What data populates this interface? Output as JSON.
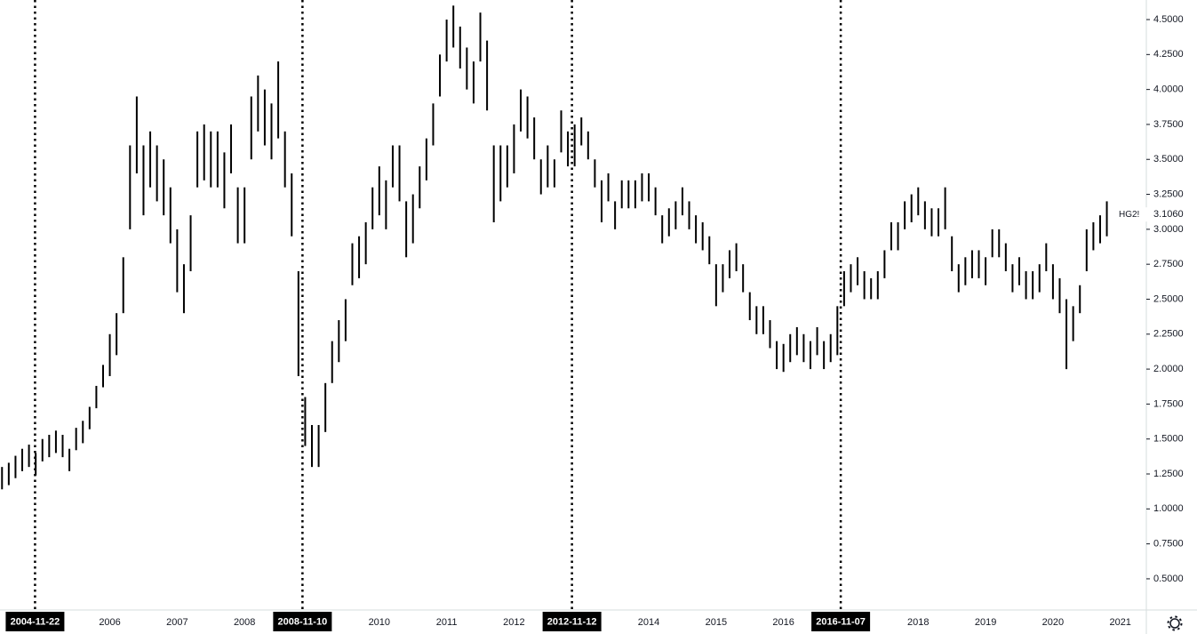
{
  "chart_data": {
    "type": "ohlc",
    "symbol": "HG2!",
    "last": {
      "value": 3.106,
      "label": "3.1060"
    },
    "x": [
      2004.4,
      2004.5,
      2004.6,
      2004.7,
      2004.8,
      2004.9,
      2005.0,
      2005.1,
      2005.2,
      2005.3,
      2005.4,
      2005.5,
      2005.6,
      2005.7,
      2005.8,
      2005.9,
      2006.0,
      2006.1,
      2006.2,
      2006.3,
      2006.4,
      2006.5,
      2006.6,
      2006.7,
      2006.8,
      2006.9,
      2007.0,
      2007.1,
      2007.2,
      2007.3,
      2007.4,
      2007.5,
      2007.6,
      2007.7,
      2007.8,
      2007.9,
      2008.0,
      2008.1,
      2008.2,
      2008.3,
      2008.4,
      2008.5,
      2008.6,
      2008.7,
      2008.8,
      2008.9,
      2009.0,
      2009.1,
      2009.2,
      2009.3,
      2009.4,
      2009.5,
      2009.6,
      2009.7,
      2009.8,
      2009.9,
      2010.0,
      2010.1,
      2010.2,
      2010.3,
      2010.4,
      2010.5,
      2010.6,
      2010.7,
      2010.8,
      2010.9,
      2011.0,
      2011.1,
      2011.2,
      2011.3,
      2011.4,
      2011.5,
      2011.6,
      2011.7,
      2011.8,
      2011.9,
      2012.0,
      2012.1,
      2012.2,
      2012.3,
      2012.4,
      2012.5,
      2012.6,
      2012.7,
      2012.8,
      2012.9,
      2013.0,
      2013.1,
      2013.2,
      2013.3,
      2013.4,
      2013.5,
      2013.6,
      2013.7,
      2013.8,
      2013.9,
      2014.0,
      2014.1,
      2014.2,
      2014.3,
      2014.4,
      2014.5,
      2014.6,
      2014.7,
      2014.8,
      2014.9,
      2015.0,
      2015.1,
      2015.2,
      2015.3,
      2015.4,
      2015.5,
      2015.6,
      2015.7,
      2015.8,
      2015.9,
      2016.0,
      2016.1,
      2016.2,
      2016.3,
      2016.4,
      2016.5,
      2016.6,
      2016.7,
      2016.8,
      2016.9,
      2017.0,
      2017.1,
      2017.2,
      2017.3,
      2017.4,
      2017.5,
      2017.6,
      2017.7,
      2017.8,
      2017.9,
      2018.0,
      2018.1,
      2018.2,
      2018.3,
      2018.4,
      2018.5,
      2018.6,
      2018.7,
      2018.8,
      2018.9,
      2019.0,
      2019.1,
      2019.2,
      2019.3,
      2019.4,
      2019.5,
      2019.6,
      2019.7,
      2019.8,
      2019.9,
      2020.0,
      2020.1,
      2020.2,
      2020.3,
      2020.4,
      2020.5,
      2020.6,
      2020.7,
      2020.8
    ],
    "low": [
      1.14,
      1.17,
      1.22,
      1.27,
      1.3,
      1.24,
      1.34,
      1.37,
      1.4,
      1.37,
      1.27,
      1.42,
      1.47,
      1.57,
      1.72,
      1.87,
      1.95,
      2.1,
      2.4,
      3.0,
      3.4,
      3.1,
      3.3,
      3.2,
      3.1,
      2.9,
      2.55,
      2.4,
      2.7,
      3.3,
      3.35,
      3.3,
      3.3,
      3.15,
      3.4,
      2.9,
      2.9,
      3.5,
      3.7,
      3.6,
      3.5,
      3.65,
      3.3,
      2.95,
      1.95,
      1.45,
      1.3,
      1.3,
      1.55,
      1.9,
      2.05,
      2.2,
      2.6,
      2.65,
      2.75,
      3.0,
      3.1,
      3.0,
      3.3,
      3.2,
      2.8,
      2.9,
      3.15,
      3.35,
      3.6,
      3.95,
      4.2,
      4.3,
      4.15,
      4.0,
      3.9,
      4.2,
      3.85,
      3.05,
      3.2,
      3.3,
      3.4,
      3.7,
      3.65,
      3.5,
      3.25,
      3.3,
      3.3,
      3.55,
      3.45,
      3.45,
      3.6,
      3.5,
      3.3,
      3.05,
      3.2,
      3.0,
      3.15,
      3.15,
      3.15,
      3.2,
      3.2,
      3.1,
      2.9,
      2.95,
      3.0,
      3.1,
      3.0,
      2.9,
      2.85,
      2.75,
      2.45,
      2.55,
      2.65,
      2.7,
      2.55,
      2.35,
      2.25,
      2.25,
      2.15,
      2.0,
      1.98,
      2.05,
      2.1,
      2.05,
      2.0,
      2.1,
      2.0,
      2.05,
      2.1,
      2.45,
      2.55,
      2.6,
      2.5,
      2.5,
      2.5,
      2.65,
      2.85,
      2.85,
      3.0,
      3.05,
      3.1,
      3.0,
      2.95,
      2.95,
      3.0,
      2.7,
      2.55,
      2.6,
      2.65,
      2.65,
      2.6,
      2.8,
      2.8,
      2.7,
      2.55,
      2.6,
      2.5,
      2.5,
      2.55,
      2.7,
      2.5,
      2.4,
      2.0,
      2.2,
      2.4,
      2.7,
      2.85,
      2.9,
      2.95
    ],
    "high": [
      1.3,
      1.33,
      1.38,
      1.43,
      1.46,
      1.4,
      1.5,
      1.53,
      1.56,
      1.53,
      1.43,
      1.58,
      1.63,
      1.73,
      1.88,
      2.03,
      2.25,
      2.4,
      2.8,
      3.6,
      3.95,
      3.6,
      3.7,
      3.6,
      3.5,
      3.3,
      3.0,
      2.75,
      3.1,
      3.7,
      3.75,
      3.7,
      3.7,
      3.55,
      3.75,
      3.3,
      3.3,
      3.95,
      4.1,
      4.0,
      3.9,
      4.2,
      3.7,
      3.4,
      2.7,
      1.8,
      1.6,
      1.6,
      1.9,
      2.2,
      2.35,
      2.5,
      2.9,
      2.95,
      3.05,
      3.3,
      3.45,
      3.35,
      3.6,
      3.6,
      3.2,
      3.25,
      3.45,
      3.65,
      3.9,
      4.25,
      4.5,
      4.6,
      4.45,
      4.3,
      4.2,
      4.55,
      4.35,
      3.6,
      3.6,
      3.6,
      3.75,
      4.0,
      3.95,
      3.8,
      3.5,
      3.6,
      3.5,
      3.85,
      3.7,
      3.75,
      3.8,
      3.7,
      3.5,
      3.35,
      3.4,
      3.2,
      3.35,
      3.35,
      3.35,
      3.4,
      3.4,
      3.3,
      3.1,
      3.15,
      3.2,
      3.3,
      3.2,
      3.1,
      3.05,
      2.95,
      2.75,
      2.75,
      2.85,
      2.9,
      2.75,
      2.55,
      2.45,
      2.45,
      2.35,
      2.2,
      2.18,
      2.25,
      2.3,
      2.25,
      2.2,
      2.3,
      2.2,
      2.25,
      2.45,
      2.7,
      2.75,
      2.8,
      2.7,
      2.65,
      2.7,
      2.85,
      3.05,
      3.05,
      3.2,
      3.25,
      3.3,
      3.2,
      3.15,
      3.15,
      3.3,
      2.95,
      2.75,
      2.8,
      2.85,
      2.85,
      2.8,
      3.0,
      3.0,
      2.9,
      2.75,
      2.8,
      2.7,
      2.7,
      2.75,
      2.9,
      2.75,
      2.65,
      2.5,
      2.45,
      2.6,
      3.0,
      3.05,
      3.1,
      3.2
    ],
    "color": "#000000",
    "xlim": [
      2004.37,
      2021.36
    ],
    "xticks": [
      2006,
      2007,
      2008,
      2010,
      2011,
      2012,
      2014,
      2015,
      2016,
      2018,
      2019,
      2020,
      2021
    ],
    "ylim": [
      0.277,
      4.64
    ],
    "yticks": [
      {
        "value": 0.5,
        "label": "0.5000"
      },
      {
        "value": 0.75,
        "label": "0.7500"
      },
      {
        "value": 1.0,
        "label": "1.0000"
      },
      {
        "value": 1.25,
        "label": "1.2500"
      },
      {
        "value": 1.5,
        "label": "1.5000"
      },
      {
        "value": 1.75,
        "label": "1.7500"
      },
      {
        "value": 2.0,
        "label": "2.0000"
      },
      {
        "value": 2.25,
        "label": "2.2500"
      },
      {
        "value": 2.5,
        "label": "2.5000"
      },
      {
        "value": 2.75,
        "label": "2.7500"
      },
      {
        "value": 3.0,
        "label": "3.0000"
      },
      {
        "value": 3.25,
        "label": "3.2500"
      },
      {
        "value": 3.5,
        "label": "3.5000"
      },
      {
        "value": 3.75,
        "label": "3.7500"
      },
      {
        "value": 4.0,
        "label": "4.0000"
      },
      {
        "value": 4.25,
        "label": "4.2500"
      },
      {
        "value": 4.5,
        "label": "4.5000"
      }
    ],
    "vlines": [
      {
        "value": 2004.89,
        "label": "2004-11-22"
      },
      {
        "value": 2008.86,
        "label": "2008-11-10"
      },
      {
        "value": 2012.86,
        "label": "2012-11-12"
      },
      {
        "value": 2016.85,
        "label": "2016-11-07"
      }
    ],
    "grid": false
  }
}
